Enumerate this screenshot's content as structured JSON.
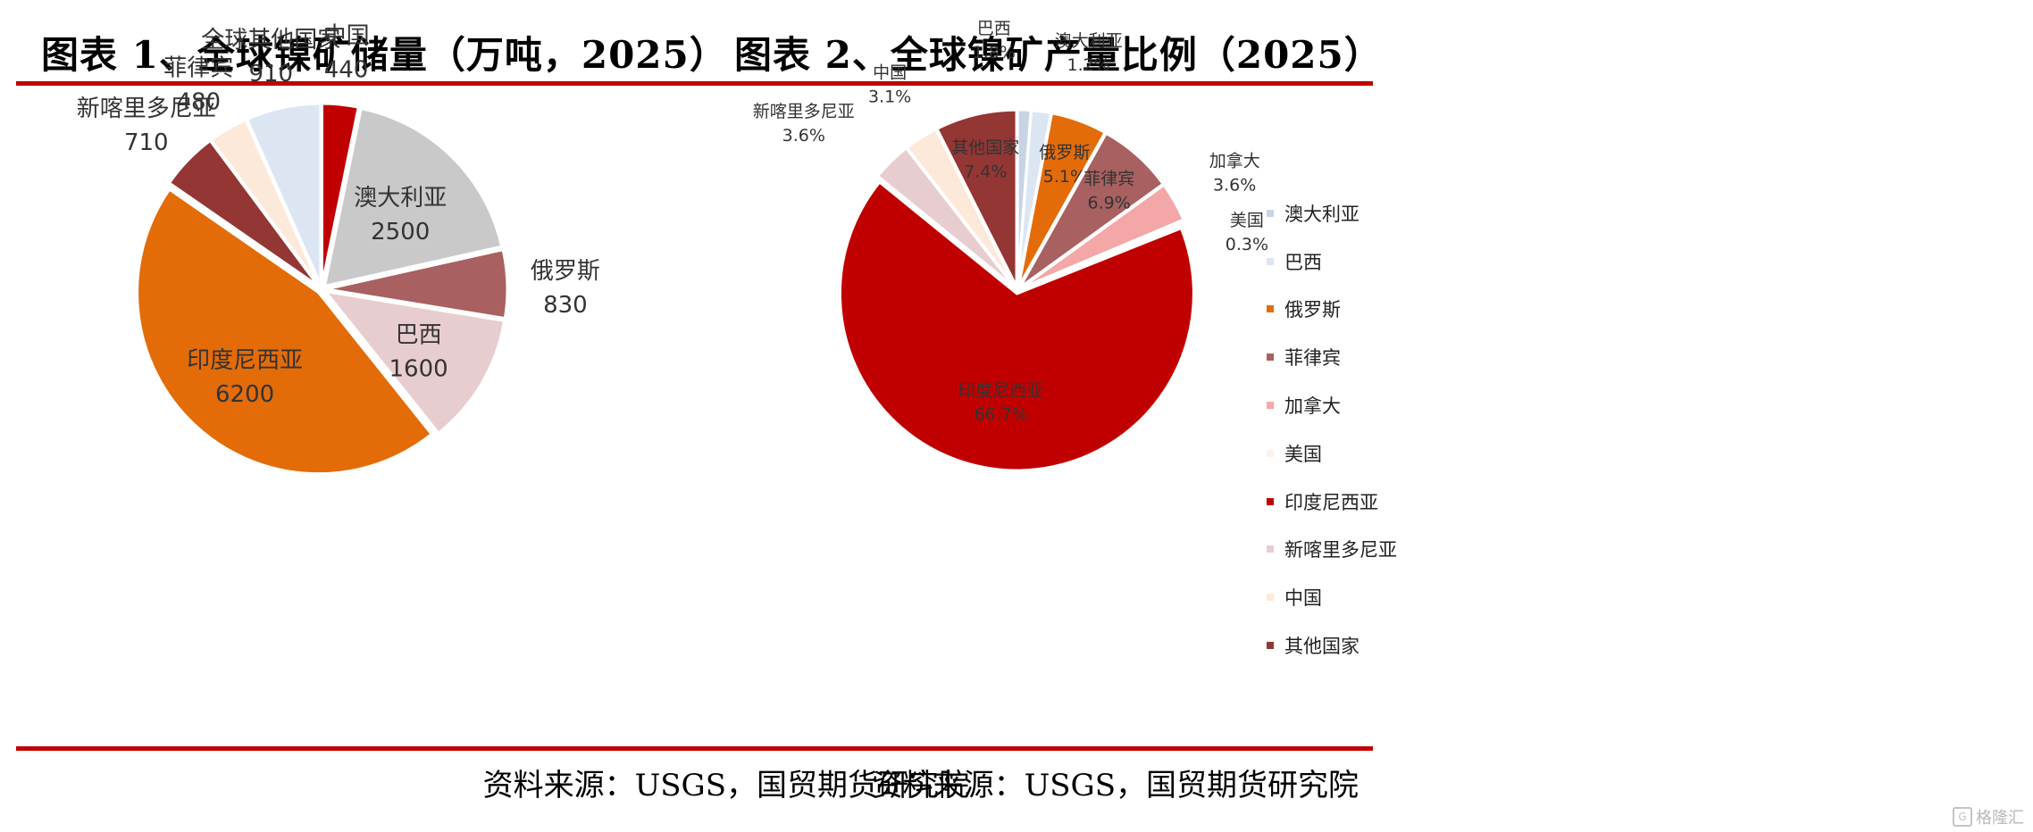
{
  "left": {
    "title": "图表 1、全球镍矿储量（万吨，2025）",
    "source": "资料来源：USGS，国贸期货研究院"
  },
  "right": {
    "title": "图表 2、全球镍矿产量比例（2025）",
    "source": "资料来源：USGS，国贸期货研究院"
  },
  "watermark": "格隆汇",
  "chart_data": [
    {
      "type": "pie",
      "title": "图表 1、全球镍矿储量（万吨，2025）",
      "start": "clockwise from 12 o'clock",
      "categories": [
        "中国",
        "澳大利亚",
        "俄罗斯",
        "巴西",
        "印度尼西亚",
        "新喀里多尼亚",
        "菲律宾",
        "全球其他国家"
      ],
      "values": [
        440,
        2500,
        830,
        1600,
        6200,
        710,
        480,
        910
      ],
      "colors": [
        "#c00000",
        "#c9c9c9",
        "#a86060",
        "#e8cdd0",
        "#e36c09",
        "#943634",
        "#fde9d9",
        "#dce6f2"
      ],
      "labels_inside": [
        false,
        true,
        false,
        true,
        true,
        false,
        false,
        false
      ]
    },
    {
      "type": "pie",
      "title": "图表 2、全球镍矿产量比例（2025）",
      "start": "clockwise from 12 o'clock",
      "categories": [
        "澳大利亚",
        "巴西",
        "俄罗斯",
        "菲律宾",
        "加拿大",
        "美国",
        "印度尼西亚",
        "新喀里多尼亚",
        "中国",
        "其他国家"
      ],
      "values": [
        1.2,
        1.8,
        5.1,
        6.9,
        3.6,
        0.3,
        66.7,
        3.6,
        3.1,
        7.4
      ],
      "value_labels": [
        "1.2%",
        "1.8%",
        "5.1%",
        "6.9%",
        "3.6%",
        "0.3%",
        "66.7%",
        "3.6%",
        "3.1%",
        "7.4%"
      ],
      "colors": [
        "#c8d4e4",
        "#dce6f2",
        "#e36c09",
        "#a86060",
        "#f4a7a7",
        "#fdf2ea",
        "#c00000",
        "#e8cdd0",
        "#fde9d9",
        "#943634"
      ],
      "legend": "right"
    }
  ]
}
